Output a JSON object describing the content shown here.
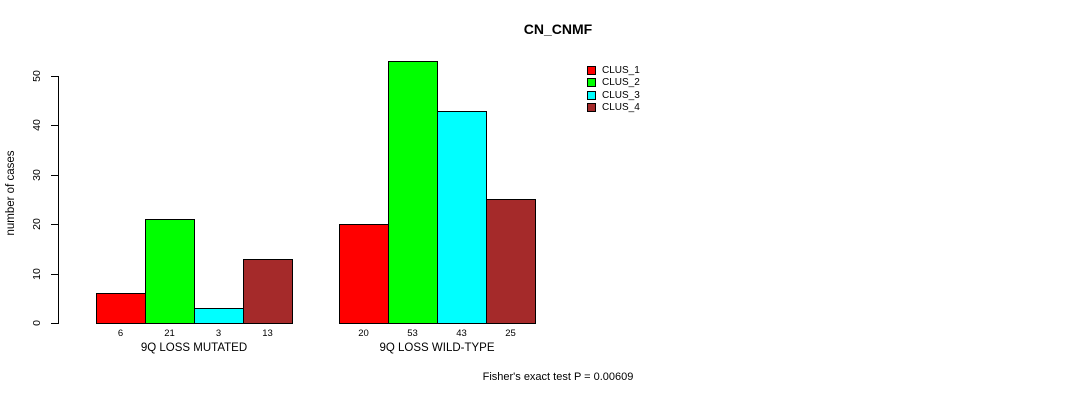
{
  "chart_data": {
    "type": "bar",
    "title": "CN_CNMF",
    "ylabel": "number of cases",
    "xlabel": "",
    "categories": [
      "9Q LOSS MUTATED",
      "9Q LOSS WILD-TYPE"
    ],
    "series": [
      {
        "name": "CLUS_1",
        "color": "#ff0000",
        "values": [
          6,
          20
        ]
      },
      {
        "name": "CLUS_2",
        "color": "#00ff00",
        "values": [
          21,
          53
        ]
      },
      {
        "name": "CLUS_3",
        "color": "#00ffff",
        "values": [
          3,
          43
        ]
      },
      {
        "name": "CLUS_4",
        "color": "#a52a2a",
        "values": [
          13,
          25
        ]
      }
    ],
    "yticks": [
      0,
      10,
      20,
      30,
      40,
      50
    ],
    "ylim": [
      0,
      55
    ],
    "grid": false,
    "legend_position": "top-right",
    "show_bar_values": true,
    "annotation": "Fisher's exact test P = 0.00609"
  }
}
